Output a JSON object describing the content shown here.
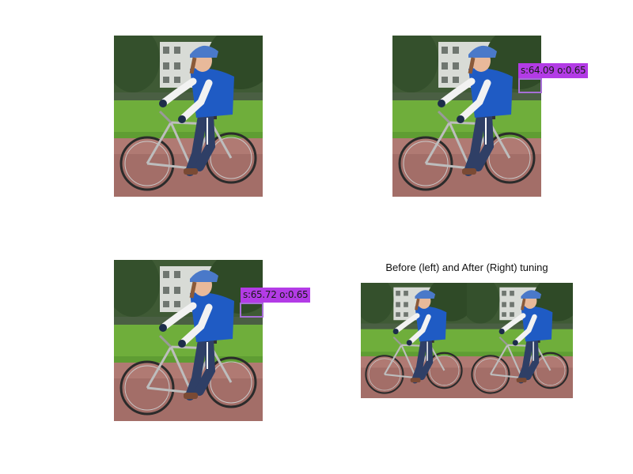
{
  "panels": [
    {
      "id": "original"
    },
    {
      "id": "detection-1",
      "label": "s:64.09 o:0.65"
    },
    {
      "id": "detection-2",
      "label": "s:65.72 o:0.65"
    }
  ],
  "comparison": {
    "caption": "Before (left) and After (Right) tuning"
  },
  "colors": {
    "detection_label_bg": "#b33be6",
    "detection_box": "#a66fd6"
  }
}
